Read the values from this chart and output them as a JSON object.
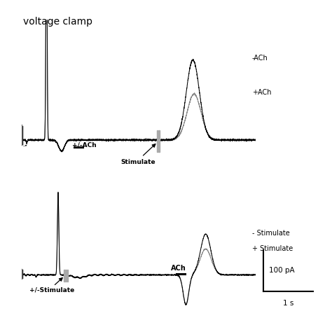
{
  "title": "voltage clamp",
  "title_fontsize": 10,
  "background_color": "#ffffff",
  "top_panel": {
    "label_pm_ACh": "+/-ACh",
    "label_stimulate": "Stimulate",
    "label_nACh": "-ACh",
    "label_pACh": "+ACh"
  },
  "bottom_panel": {
    "label_pm_Stimulate": "+/-Stimulate",
    "label_ACh": "ACh",
    "label_nStimulate": "- Stimulate",
    "label_pStimulate": "+ Stimulate"
  },
  "scale_label_100pA": "100 pA",
  "scale_label_1s": "1 s"
}
